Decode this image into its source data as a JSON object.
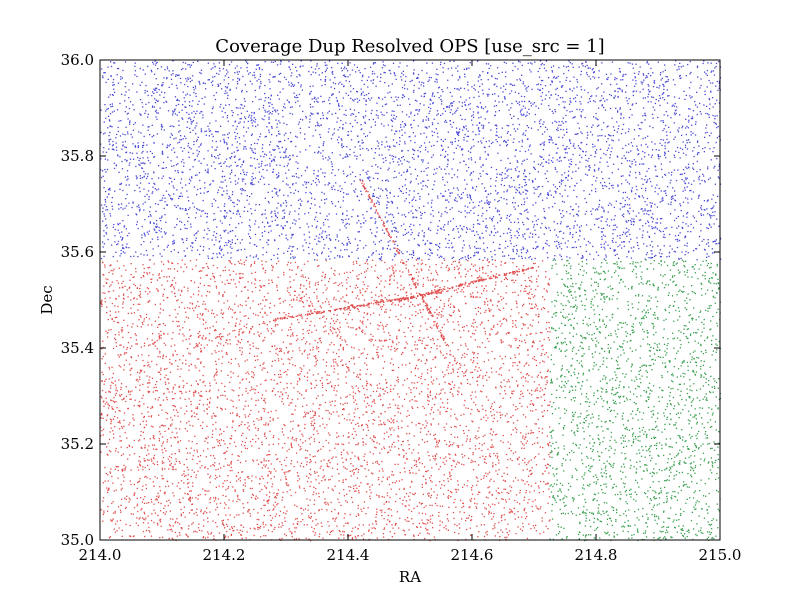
{
  "chart_data": {
    "type": "scatter",
    "title": "Coverage Dup Resolved OPS [use_src = 1]",
    "xlabel": "RA",
    "ylabel": "Dec",
    "xlim": [
      214.0,
      215.0
    ],
    "ylim": [
      35.0,
      36.0
    ],
    "xticks": [
      "214.0",
      "214.2",
      "214.4",
      "214.6",
      "214.8",
      "215.0"
    ],
    "yticks": [
      "35.0",
      "35.2",
      "35.4",
      "35.6",
      "35.8",
      "36.0"
    ],
    "grid": false,
    "series": [
      {
        "color": "#4b4bd6",
        "region": {
          "ra": [
            214.0,
            215.0
          ],
          "dec": [
            35.585,
            36.0
          ]
        },
        "approx_points": 5200
      },
      {
        "color": "#e05050",
        "region": {
          "ra": [
            214.0,
            214.725
          ],
          "dec": [
            35.0,
            35.585
          ]
        },
        "approx_points": 5200
      },
      {
        "color": "#3aa050",
        "region": {
          "ra": [
            214.725,
            215.0
          ],
          "dec": [
            35.0,
            35.585
          ]
        },
        "approx_points": 2000
      }
    ],
    "features": [
      {
        "type": "streak",
        "series": 1,
        "from": [
          214.42,
          35.75
        ],
        "to": [
          214.57,
          35.38
        ]
      },
      {
        "type": "streak",
        "series": 1,
        "from": [
          214.28,
          35.46
        ],
        "to": [
          214.56,
          35.52
        ]
      },
      {
        "type": "streak",
        "series": 1,
        "from": [
          214.48,
          35.5
        ],
        "to": [
          214.7,
          35.57
        ]
      }
    ]
  }
}
